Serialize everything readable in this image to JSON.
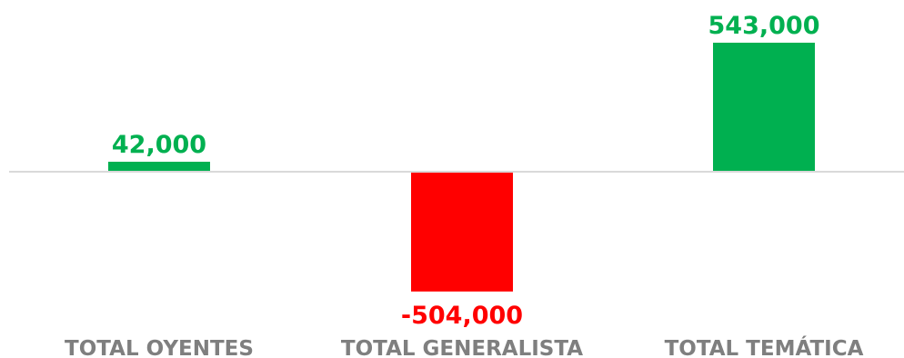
{
  "chart_data": {
    "type": "bar",
    "categories": [
      "TOTAL OYENTES",
      "TOTAL GENERALISTA",
      "TOTAL TEMÁTICA"
    ],
    "values": [
      42000,
      -504000,
      543000
    ],
    "value_labels": [
      "42,000",
      "-504,000",
      "543,000"
    ],
    "title": "",
    "xlabel": "",
    "ylabel": "",
    "ylim": [
      -504000,
      543000
    ],
    "grid": false,
    "legend": "none",
    "colors": {
      "positive": "#00b050",
      "negative": "#ff0000",
      "axis": "#d9d9d9",
      "category_text": "#7f7f7f"
    }
  }
}
